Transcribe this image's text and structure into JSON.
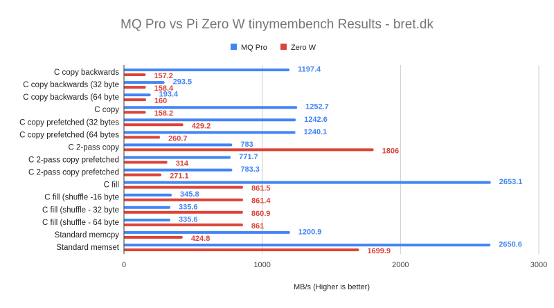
{
  "chart_data": {
    "type": "bar",
    "orientation": "horizontal",
    "title": "MQ Pro vs Pi Zero W tinymembench Results - bret.dk",
    "xlabel": "MB/s (Higher is better)",
    "ylabel": "",
    "xlim": [
      0,
      3000
    ],
    "xticks": [
      0,
      1000,
      2000,
      3000
    ],
    "grid": true,
    "legend_position": "top",
    "categories": [
      "C copy backwards",
      "C copy backwards (32 byte",
      "C copy backwards (64 byte",
      "C copy",
      "C copy prefetched (32 bytes",
      "C copy prefetched (64 bytes",
      "C 2-pass copy",
      "C 2-pass copy prefetched",
      "C 2-pass copy prefetched",
      "C fill",
      "C fill (shuffle -16 byte",
      "C fill (shuffle - 32 byte",
      "C fill (shuffle - 64 byte",
      "Standard memcpy",
      "Standard memset"
    ],
    "series": [
      {
        "name": "MQ Pro",
        "color": "#4285f4",
        "values": [
          1197.4,
          293.5,
          193.4,
          1252.7,
          1242.6,
          1240.1,
          783,
          771.7,
          783.3,
          2653.1,
          345.8,
          335.6,
          335.6,
          1200.9,
          2650.6
        ]
      },
      {
        "name": "Zero W",
        "color": "#db4437",
        "values": [
          157.2,
          158.4,
          160,
          158.2,
          429.2,
          260.7,
          1806,
          314,
          271.1,
          861.5,
          861.4,
          860.9,
          861,
          424.8,
          1699.9
        ]
      }
    ]
  }
}
